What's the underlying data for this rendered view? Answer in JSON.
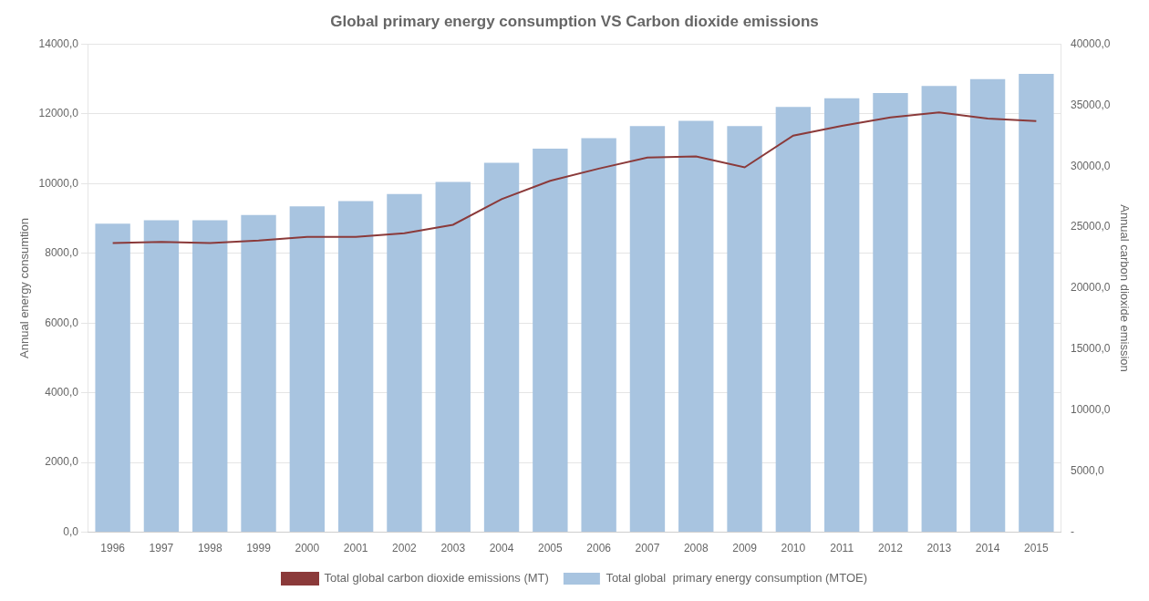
{
  "chart_data": {
    "type": "bar",
    "title": "Global primary energy consumption VS Carbon dioxide emissions",
    "categories": [
      "1996",
      "1997",
      "1998",
      "1999",
      "2000",
      "2001",
      "2002",
      "2003",
      "2004",
      "2005",
      "2006",
      "2007",
      "2008",
      "2009",
      "2010",
      "2011",
      "2012",
      "2013",
      "2014",
      "2015"
    ],
    "series": [
      {
        "name": "Total global  primary energy consumption (MTOE)",
        "type": "bar",
        "color": "#a8c4e0",
        "values": [
          8850,
          8950,
          8950,
          9100,
          9350,
          9500,
          9700,
          10050,
          10600,
          11000,
          11300,
          11650,
          11800,
          11650,
          12200,
          12450,
          12600,
          12800,
          13000,
          13150
        ]
      },
      {
        "name": "Total global carbon dioxide emissions (MT)",
        "type": "line",
        "color": "#8B3A3A",
        "axis": "y2",
        "values": [
          23700,
          23800,
          23700,
          23900,
          24200,
          24200,
          24500,
          25200,
          27300,
          28800,
          29800,
          30700,
          30800,
          29900,
          32500,
          33300,
          34000,
          34400,
          33900,
          33700
        ]
      }
    ],
    "ylabel": "Annual energy consumtion",
    "y2label": "Annual carbon dioxide emission",
    "ylim": [
      0,
      14000
    ],
    "yticks": [
      {
        "value": 0,
        "label": "0,0"
      },
      {
        "value": 2000,
        "label": "2000,0"
      },
      {
        "value": 4000,
        "label": "4000,0"
      },
      {
        "value": 6000,
        "label": "6000,0"
      },
      {
        "value": 8000,
        "label": "8000,0"
      },
      {
        "value": 10000,
        "label": "10000,0"
      },
      {
        "value": 12000,
        "label": "12000,0"
      },
      {
        "value": 14000,
        "label": "14000,0"
      }
    ],
    "y2lim": [
      0,
      40000
    ],
    "y2ticks": [
      {
        "value": 0,
        "label": "-"
      },
      {
        "value": 5000,
        "label": "5000,0"
      },
      {
        "value": 10000,
        "label": "10000,0"
      },
      {
        "value": 15000,
        "label": "15000,0"
      },
      {
        "value": 20000,
        "label": "20000,0"
      },
      {
        "value": 25000,
        "label": "25000,0"
      },
      {
        "value": 30000,
        "label": "30000,0"
      },
      {
        "value": 35000,
        "label": "35000,0"
      },
      {
        "value": 40000,
        "label": "40000,0"
      }
    ],
    "grid": true,
    "legend": "bottom"
  }
}
